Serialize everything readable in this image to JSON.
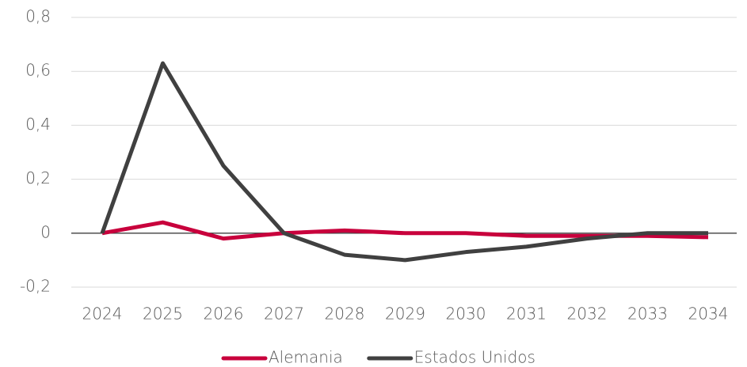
{
  "chart_data": {
    "type": "line",
    "categories": [
      "2024",
      "2025",
      "2026",
      "2027",
      "2028",
      "2029",
      "2030",
      "2031",
      "2032",
      "2033",
      "2034"
    ],
    "series": [
      {
        "name": "Alemania",
        "color": "#c8003c",
        "values": [
          0,
          0.04,
          -0.02,
          0,
          0.01,
          0,
          0,
          -0.01,
          -0.01,
          -0.01,
          -0.015
        ]
      },
      {
        "name": "Estados Unidos",
        "color": "#404040",
        "values": [
          0,
          0.63,
          0.25,
          0,
          -0.08,
          -0.1,
          -0.07,
          -0.05,
          -0.02,
          0,
          0
        ]
      }
    ],
    "ylim": [
      -0.2,
      0.8
    ],
    "yticks": [
      {
        "value": -0.2,
        "label": "-0,2"
      },
      0,
      {
        "value": 0.2,
        "label": "0,2"
      },
      {
        "value": 0.4,
        "label": "0,4"
      },
      {
        "value": 0.6,
        "label": "0,6"
      },
      {
        "value": 0.8,
        "label": "0,8"
      }
    ],
    "grid": true,
    "legend": "bottom"
  }
}
